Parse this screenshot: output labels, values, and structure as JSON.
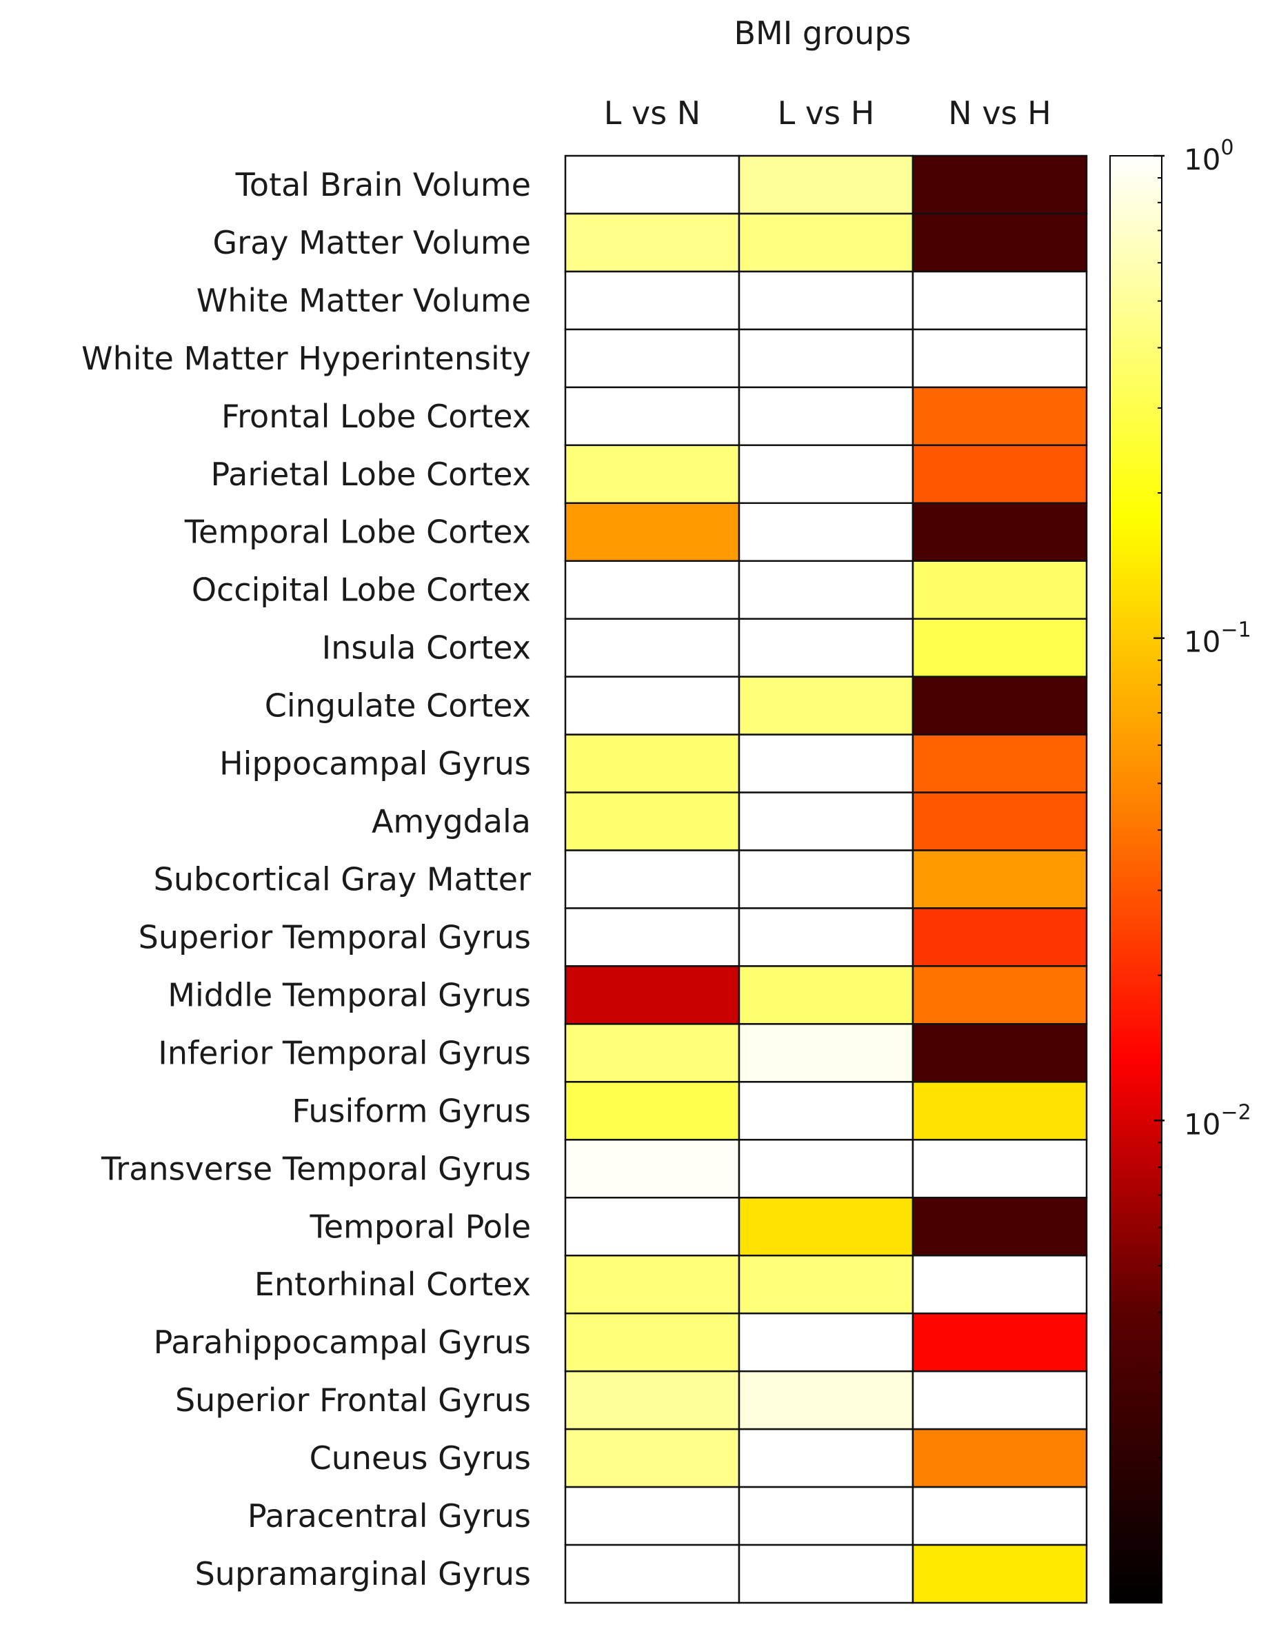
{
  "chart_data": {
    "type": "heatmap",
    "title": "BMI groups",
    "columns": [
      "L vs N",
      "L vs H",
      "N vs H"
    ],
    "rows": [
      "Total Brain Volume",
      "Gray Matter Volume",
      "White Matter Volume",
      "White Matter Hyperintensity",
      "Frontal Lobe Cortex",
      "Parietal Lobe Cortex",
      "Temporal Lobe Cortex",
      "Occipital Lobe Cortex",
      "Insula Cortex",
      "Cingulate Cortex",
      "Hippocampal Gyrus",
      "Amygdala",
      "Subcortical Gray Matter",
      "Superior Temporal Gyrus",
      "Middle Temporal Gyrus",
      "Inferior Temporal Gyrus",
      "Fusiform Gyrus",
      "Transverse Temporal Gyrus",
      "Temporal Pole",
      "Entorhinal Cortex",
      "Parahippocampal Gyrus",
      "Superior Frontal Gyrus",
      "Cuneus Gyrus",
      "Paracentral Gyrus",
      "Supramarginal Gyrus"
    ],
    "values": [
      [
        1.0,
        0.5,
        0.003
      ],
      [
        0.45,
        0.42,
        0.003
      ],
      [
        1.0,
        1.0,
        1.0
      ],
      [
        1.0,
        1.0,
        1.0
      ],
      [
        1.0,
        1.0,
        0.035
      ],
      [
        0.4,
        1.0,
        0.03
      ],
      [
        0.06,
        1.0,
        0.003
      ],
      [
        1.0,
        1.0,
        0.35
      ],
      [
        1.0,
        1.0,
        0.3
      ],
      [
        1.0,
        0.4,
        0.003
      ],
      [
        0.38,
        1.0,
        0.034
      ],
      [
        0.38,
        1.0,
        0.03
      ],
      [
        1.0,
        1.0,
        0.06
      ],
      [
        1.0,
        1.0,
        0.022
      ],
      [
        0.009,
        0.38,
        0.04
      ],
      [
        0.4,
        0.9,
        0.003
      ],
      [
        0.3,
        1.0,
        0.13
      ],
      [
        0.95,
        1.0,
        1.0
      ],
      [
        1.0,
        0.13,
        0.003
      ],
      [
        0.4,
        0.4,
        1.0
      ],
      [
        0.4,
        1.0,
        0.014
      ],
      [
        0.5,
        0.8,
        1.0
      ],
      [
        0.45,
        1.0,
        0.045
      ],
      [
        1.0,
        1.0,
        1.0
      ],
      [
        1.0,
        1.0,
        0.14
      ]
    ],
    "colorscale": {
      "name": "hot",
      "scale": "log",
      "range": [
        0.001,
        1
      ],
      "ticks": [
        {
          "value": 1,
          "base": "10",
          "exp": "0"
        },
        {
          "value": 0.1,
          "base": "10",
          "exp": "−1"
        },
        {
          "value": 0.01,
          "base": "10",
          "exp": "−2"
        }
      ]
    },
    "grid": true,
    "legend": "colorbar-right"
  }
}
